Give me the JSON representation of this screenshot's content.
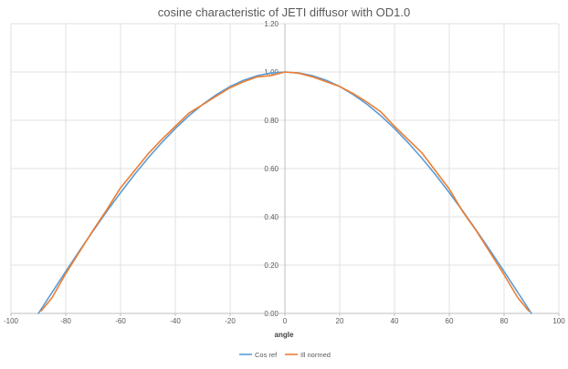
{
  "chart_data": {
    "type": "line",
    "title": "cosine characteristic of JETI diffusor with OD1.0",
    "xlabel": "angle",
    "ylabel": "",
    "xlim": [
      -100,
      100
    ],
    "ylim": [
      0,
      1.2
    ],
    "x_ticks": [
      -100,
      -80,
      -60,
      -40,
      -20,
      0,
      20,
      40,
      60,
      80,
      100
    ],
    "y_ticks": [
      "0.00",
      "0.20",
      "0.40",
      "0.60",
      "0.80",
      "1.00",
      "1.20"
    ],
    "grid": true,
    "legend_position": "bottom",
    "series": [
      {
        "name": "Cos ref",
        "color": "#5B9BD5",
        "x": [
          -90,
          -85,
          -80,
          -75,
          -70,
          -65,
          -60,
          -55,
          -50,
          -45,
          -40,
          -35,
          -30,
          -25,
          -20,
          -15,
          -10,
          -5,
          0,
          5,
          10,
          15,
          20,
          25,
          30,
          35,
          40,
          45,
          50,
          55,
          60,
          65,
          70,
          75,
          80,
          85,
          90
        ],
        "y": [
          0.0,
          0.087,
          0.174,
          0.259,
          0.342,
          0.423,
          0.5,
          0.574,
          0.643,
          0.707,
          0.766,
          0.819,
          0.866,
          0.906,
          0.94,
          0.966,
          0.985,
          0.996,
          1.0,
          0.996,
          0.985,
          0.966,
          0.94,
          0.906,
          0.866,
          0.819,
          0.766,
          0.707,
          0.643,
          0.574,
          0.5,
          0.423,
          0.342,
          0.259,
          0.174,
          0.087,
          0.0
        ]
      },
      {
        "name": "Ill normed",
        "color": "#ED7D31",
        "x": [
          -89,
          -85,
          -80,
          -75,
          -70,
          -65,
          -60,
          -55,
          -50,
          -45,
          -40,
          -35,
          -30,
          -25,
          -20,
          -15,
          -10,
          -5,
          0,
          5,
          10,
          15,
          20,
          25,
          30,
          35,
          40,
          45,
          50,
          55,
          60,
          65,
          70,
          75,
          80,
          85,
          89
        ],
        "y": [
          0.01,
          0.065,
          0.165,
          0.255,
          0.345,
          0.43,
          0.52,
          0.59,
          0.66,
          0.72,
          0.775,
          0.83,
          0.865,
          0.9,
          0.935,
          0.96,
          0.98,
          0.985,
          1.0,
          0.995,
          0.98,
          0.96,
          0.94,
          0.91,
          0.875,
          0.835,
          0.775,
          0.72,
          0.665,
          0.59,
          0.515,
          0.42,
          0.34,
          0.25,
          0.16,
          0.065,
          0.01
        ]
      }
    ]
  }
}
